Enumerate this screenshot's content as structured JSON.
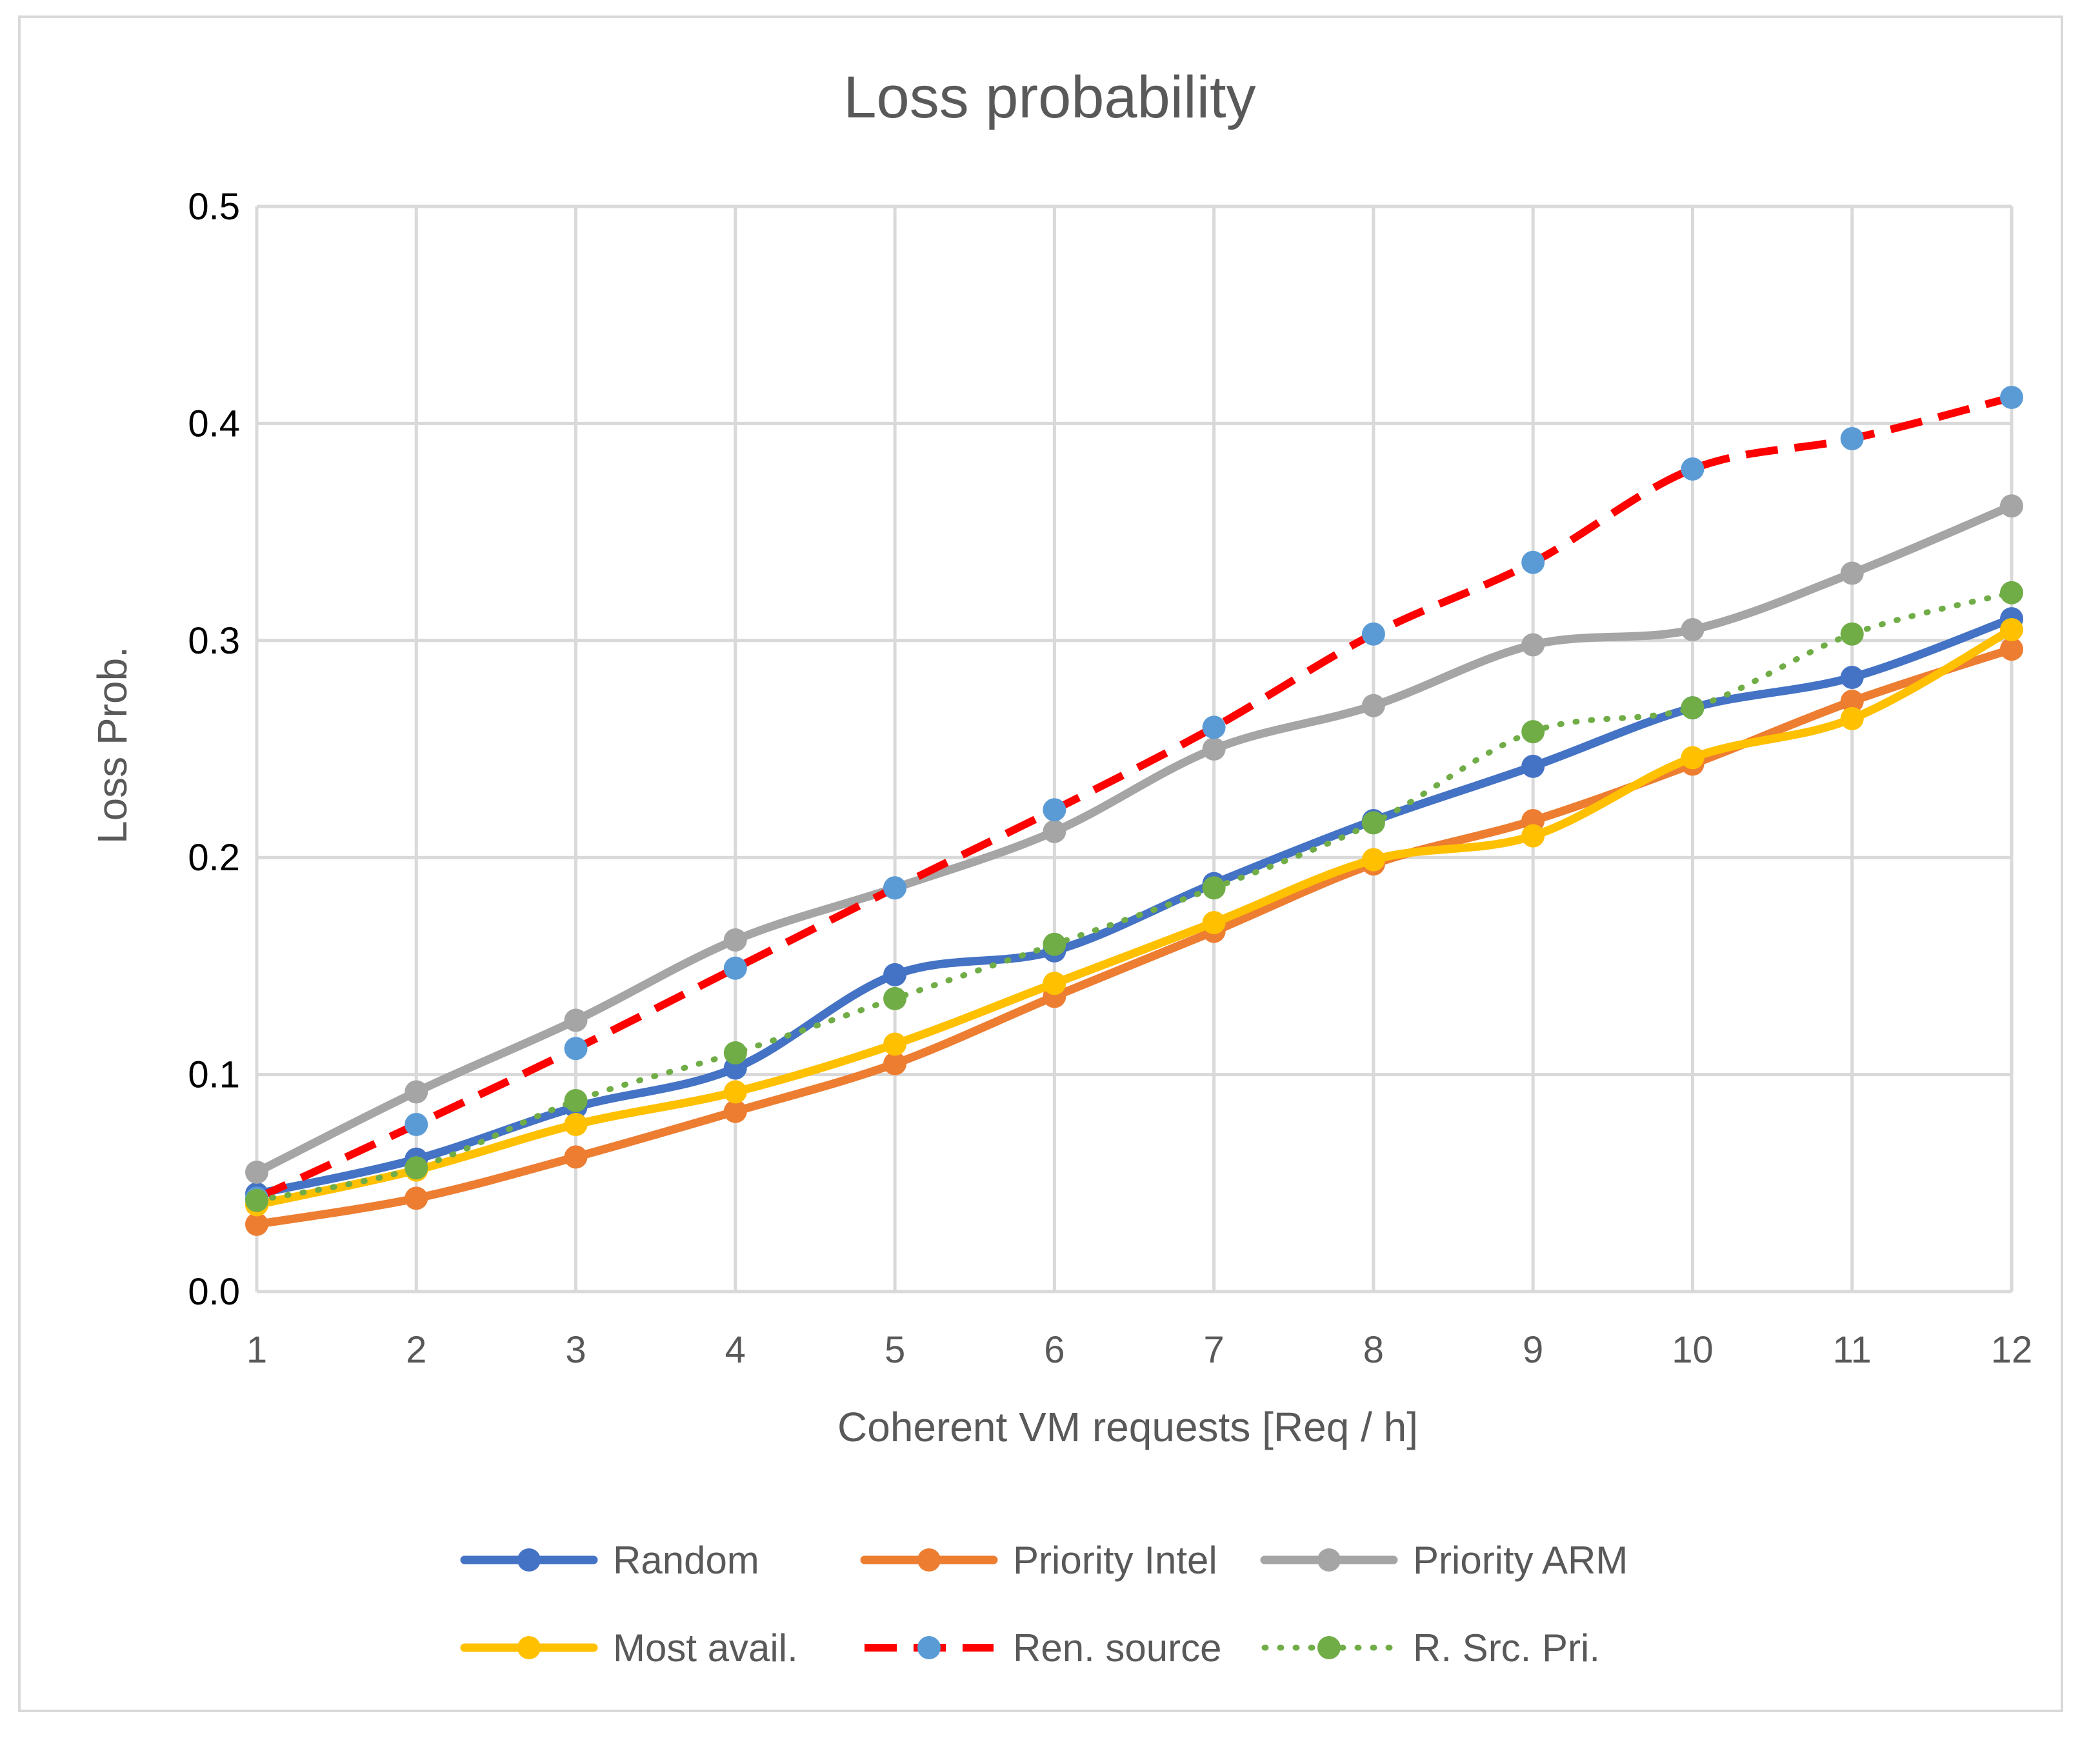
{
  "chart_data": {
    "type": "line",
    "title": "Loss probability",
    "xlabel": "Coherent  VM requests [Req / h]",
    "ylabel": "Loss Prob.",
    "x": [
      1,
      2,
      3,
      4,
      5,
      6,
      7,
      8,
      9,
      10,
      11,
      12
    ],
    "x_tick_labels": [
      "1",
      "2",
      "3",
      "4",
      "5",
      "6",
      "7",
      "8",
      "9",
      "10",
      "11",
      "12"
    ],
    "y_tick_labels": [
      "0.0",
      "0.1",
      "0.2",
      "0.3",
      "0.4",
      "0.5"
    ],
    "y_ticks": [
      0,
      0.1,
      0.2,
      0.3,
      0.4,
      0.5
    ],
    "ylim": [
      0,
      0.5
    ],
    "grid": true,
    "legend_position": "bottom",
    "series": [
      {
        "name": "Random",
        "line_color": "#4472c4",
        "marker_color": "#4472c4",
        "line_style": "solid",
        "values": [
          0.045,
          0.061,
          0.085,
          0.103,
          0.146,
          0.157,
          0.188,
          0.217,
          0.242,
          0.269,
          0.283,
          0.31
        ]
      },
      {
        "name": "Priority Intel",
        "line_color": "#ed7d31",
        "marker_color": "#ed7d31",
        "line_style": "solid",
        "values": [
          0.031,
          0.043,
          0.062,
          0.083,
          0.105,
          0.136,
          0.166,
          0.197,
          0.217,
          0.243,
          0.272,
          0.296
        ]
      },
      {
        "name": "Priority ARM",
        "line_color": "#a5a5a5",
        "marker_color": "#a5a5a5",
        "line_style": "solid",
        "values": [
          0.055,
          0.092,
          0.125,
          0.162,
          0.186,
          0.212,
          0.25,
          0.27,
          0.298,
          0.305,
          0.331,
          0.362
        ]
      },
      {
        "name": "Most avail.",
        "line_color": "#ffc000",
        "marker_color": "#ffc000",
        "line_style": "solid",
        "values": [
          0.04,
          0.056,
          0.077,
          0.092,
          0.114,
          0.142,
          0.17,
          0.199,
          0.21,
          0.246,
          0.264,
          0.305
        ]
      },
      {
        "name": "Ren. source",
        "line_color": "#ff0000",
        "marker_color": "#5b9bd5",
        "line_style": "dashed",
        "values": [
          0.043,
          0.077,
          0.112,
          0.149,
          0.186,
          0.222,
          0.26,
          0.303,
          0.336,
          0.379,
          0.393,
          0.412
        ]
      },
      {
        "name": "R. Src. Pri.",
        "line_color": "#70ad47",
        "marker_color": "#70ad47",
        "line_style": "dotted",
        "values": [
          0.042,
          0.057,
          0.088,
          0.11,
          0.135,
          0.16,
          0.186,
          0.216,
          0.258,
          0.269,
          0.303,
          0.322
        ]
      }
    ]
  }
}
